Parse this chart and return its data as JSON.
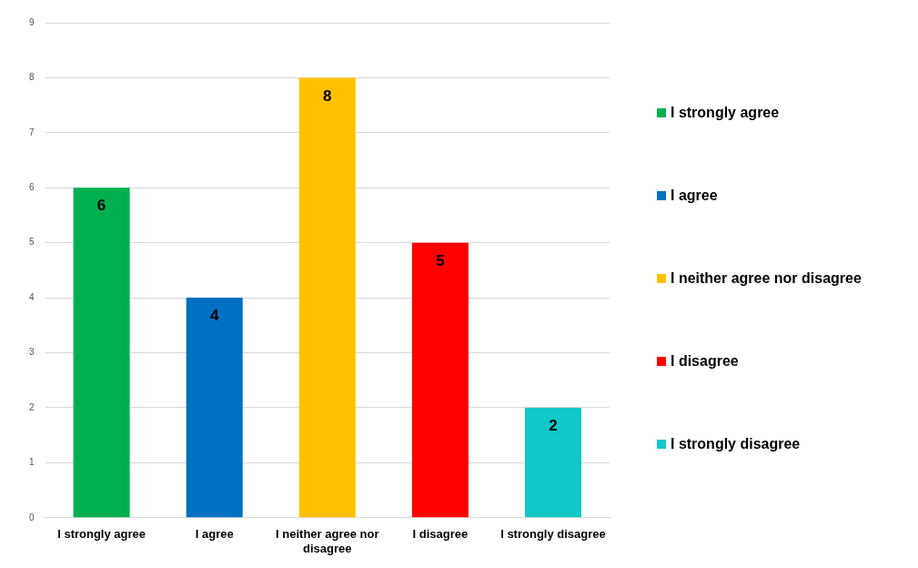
{
  "chart_data": {
    "type": "bar",
    "categories": [
      "I strongly agree",
      "I agree",
      "I neither agree nor disagree",
      "I disagree",
      "I strongly disagree"
    ],
    "series": [
      {
        "name": "I strongly agree",
        "color": "#00b050",
        "values": [
          6,
          null,
          null,
          null,
          null
        ]
      },
      {
        "name": "I agree",
        "color": "#0070c0",
        "values": [
          null,
          4,
          null,
          null,
          null
        ]
      },
      {
        "name": "I neither agree nor disagree",
        "color": "#ffc000",
        "values": [
          null,
          null,
          8,
          null,
          null
        ]
      },
      {
        "name": "I disagree",
        "color": "#ff0000",
        "values": [
          null,
          null,
          null,
          5,
          null
        ]
      },
      {
        "name": "I strongly disagree",
        "color": "#13c8c8",
        "values": [
          null,
          null,
          null,
          null,
          2
        ]
      }
    ],
    "ylim": [
      0,
      9
    ],
    "yticks": [
      0,
      1,
      2,
      3,
      4,
      5,
      6,
      7,
      8,
      9
    ],
    "grid": "y",
    "legend": "right",
    "data_labels": true
  }
}
